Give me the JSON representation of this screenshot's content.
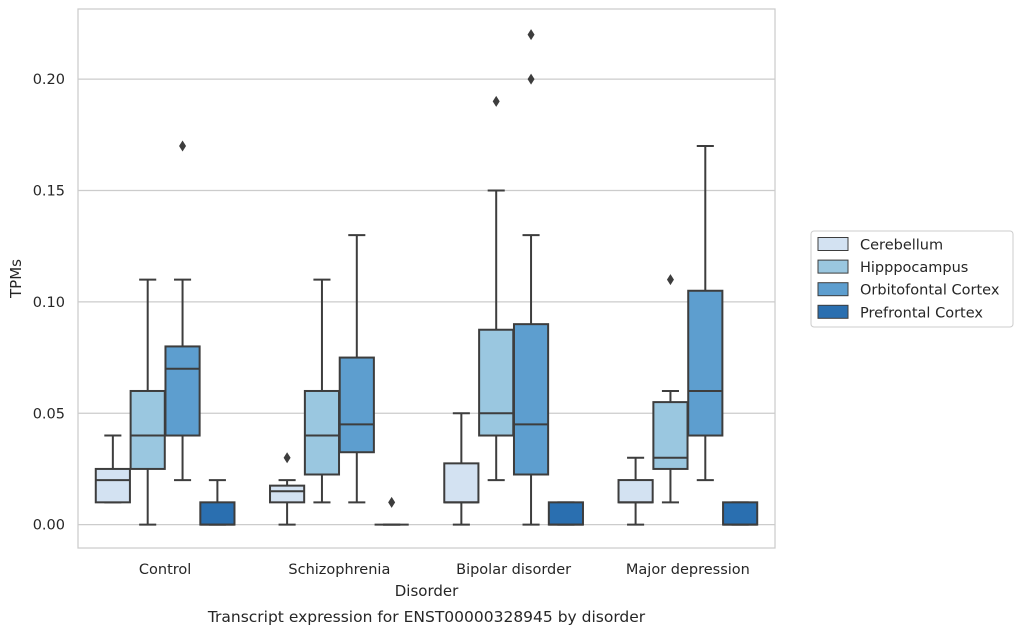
{
  "chart_data": {
    "type": "box",
    "title": "Transcript expression for ENST00000328945 by disorder",
    "xlabel": "Disorder",
    "ylabel": "TPMs",
    "ylim": [
      -0.0105,
      0.2315
    ],
    "yticks": [
      "0.00",
      "0.05",
      "0.10",
      "0.15",
      "0.20"
    ],
    "ytick_values": [
      0,
      0.05,
      0.1,
      0.15,
      0.2
    ],
    "grid": "horizontal",
    "legend_position": "right",
    "categories": [
      "Control",
      "Schizophrenia",
      "Bipolar disorder",
      "Major depression"
    ],
    "series": [
      {
        "name": "Cerebellum",
        "color": "#d3e2f2",
        "boxes": [
          {
            "whislo": 0.01,
            "q1": 0.01,
            "med": 0.02,
            "q3": 0.025,
            "whishi": 0.04,
            "fliers": []
          },
          {
            "whislo": 0.0,
            "q1": 0.01,
            "med": 0.015,
            "q3": 0.0175,
            "whishi": 0.02,
            "fliers": [
              0.03
            ]
          },
          {
            "whislo": 0.0,
            "q1": 0.01,
            "med": 0.01,
            "q3": 0.0275,
            "whishi": 0.05,
            "fliers": []
          },
          {
            "whislo": 0.0,
            "q1": 0.01,
            "med": 0.01,
            "q3": 0.02,
            "whishi": 0.03,
            "fliers": []
          }
        ]
      },
      {
        "name": "Hipppocampus",
        "color": "#9ac7e0",
        "boxes": [
          {
            "whislo": 0.0,
            "q1": 0.025,
            "med": 0.04,
            "q3": 0.06,
            "whishi": 0.11,
            "fliers": []
          },
          {
            "whislo": 0.01,
            "q1": 0.0225,
            "med": 0.04,
            "q3": 0.06,
            "whishi": 0.11,
            "fliers": []
          },
          {
            "whislo": 0.02,
            "q1": 0.04,
            "med": 0.05,
            "q3": 0.0875,
            "whishi": 0.15,
            "fliers": [
              0.19
            ]
          },
          {
            "whislo": 0.01,
            "q1": 0.025,
            "med": 0.03,
            "q3": 0.055,
            "whishi": 0.06,
            "fliers": [
              0.11
            ]
          }
        ]
      },
      {
        "name": "Orbitofontal Cortex",
        "color": "#5d9ecf",
        "boxes": [
          {
            "whislo": 0.02,
            "q1": 0.04,
            "med": 0.07,
            "q3": 0.08,
            "whishi": 0.11,
            "fliers": [
              0.17
            ]
          },
          {
            "whislo": 0.01,
            "q1": 0.0325,
            "med": 0.045,
            "q3": 0.075,
            "whishi": 0.13,
            "fliers": []
          },
          {
            "whislo": 0.0,
            "q1": 0.0225,
            "med": 0.045,
            "q3": 0.09,
            "whishi": 0.13,
            "fliers": [
              0.2,
              0.22
            ]
          },
          {
            "whislo": 0.02,
            "q1": 0.04,
            "med": 0.06,
            "q3": 0.105,
            "whishi": 0.17,
            "fliers": []
          }
        ]
      },
      {
        "name": "Prefrontal Cortex",
        "color": "#2a6fb0",
        "boxes": [
          {
            "whislo": 0.0,
            "q1": 0.0,
            "med": 0.0,
            "q3": 0.01,
            "whishi": 0.02,
            "fliers": []
          },
          {
            "whislo": 0.0,
            "q1": 0.0,
            "med": 0.0,
            "q3": 0.0,
            "whishi": 0.0,
            "fliers": [
              0.01
            ]
          },
          {
            "whislo": 0.0,
            "q1": 0.0,
            "med": 0.0,
            "q3": 0.01,
            "whishi": 0.01,
            "fliers": []
          },
          {
            "whislo": 0.0,
            "q1": 0.0,
            "med": 0.0,
            "q3": 0.01,
            "whishi": 0.01,
            "fliers": []
          }
        ]
      }
    ]
  }
}
